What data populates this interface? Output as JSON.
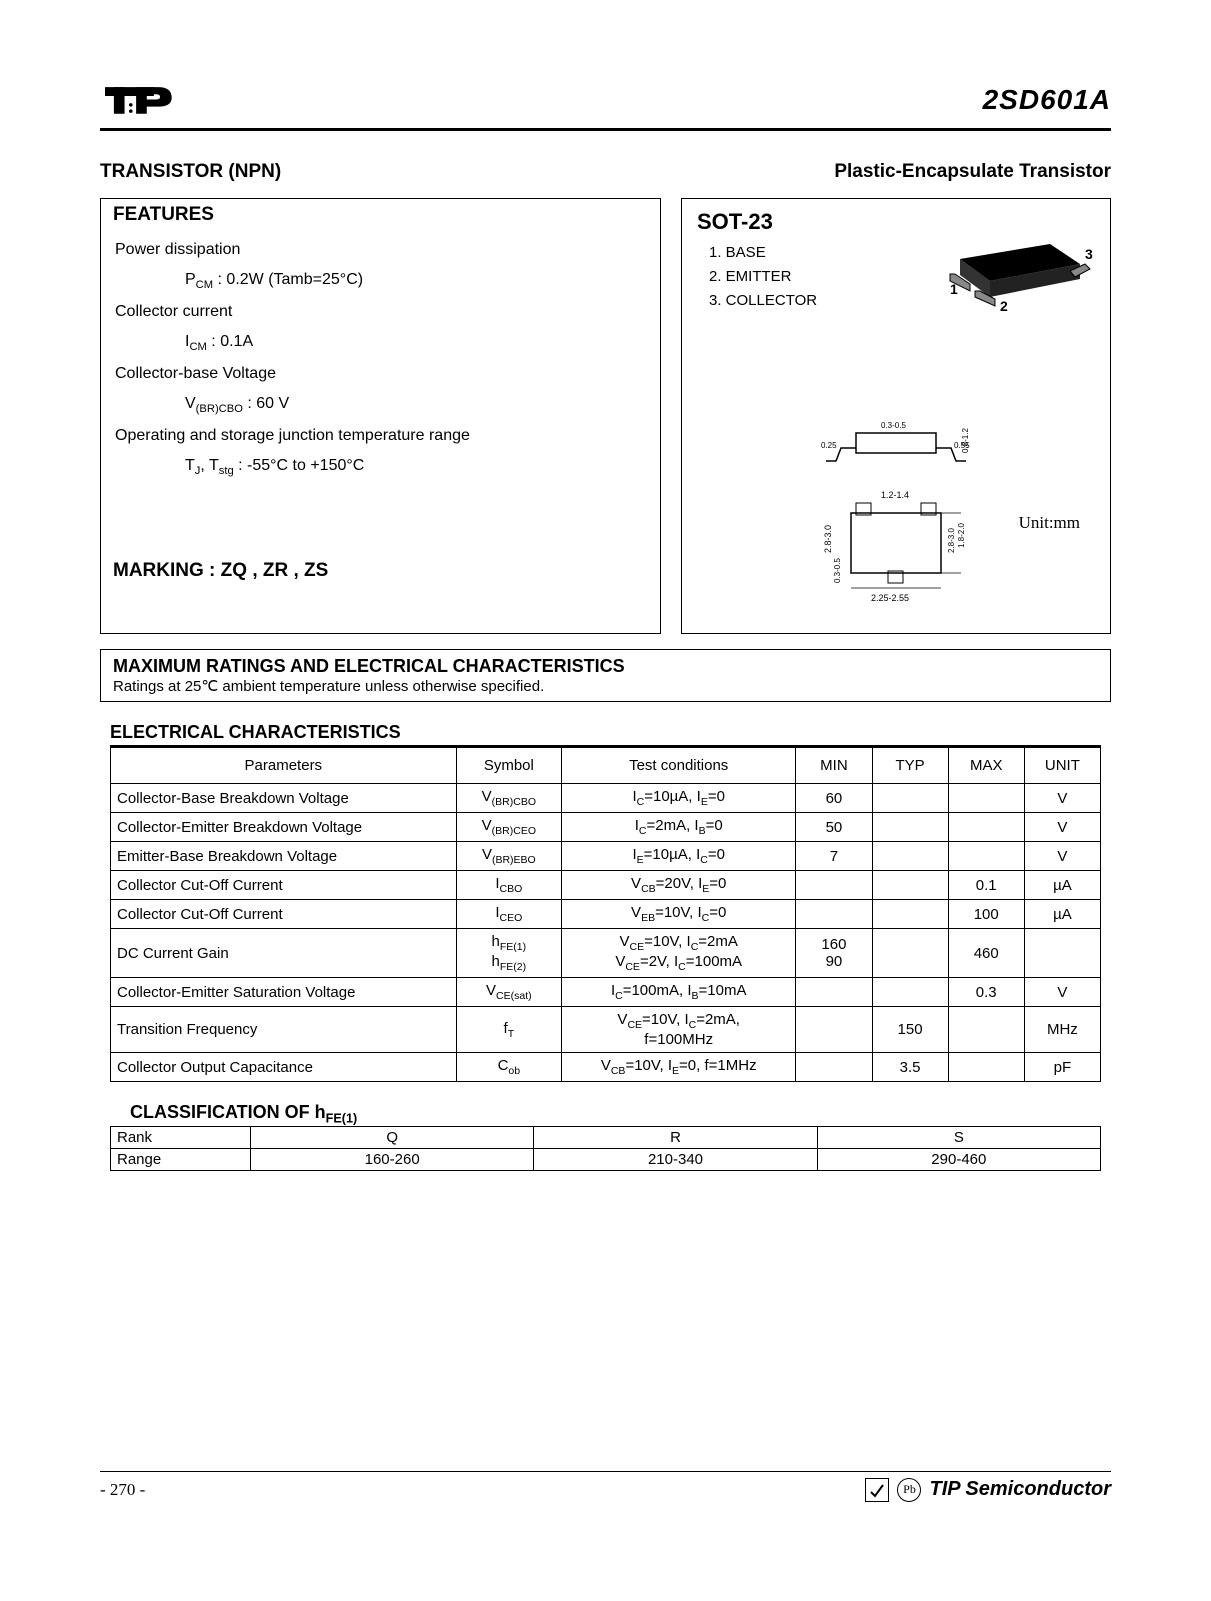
{
  "header": {
    "part_number": "2SD601A"
  },
  "subtitle": {
    "left": "TRANSISTOR (NPN)",
    "right": "Plastic-Encapsulate Transistor"
  },
  "features": {
    "title": "FEATURES",
    "items": [
      {
        "label": "Power dissipation",
        "value_html": "P<sub>CM</sub> : 0.2W (Tamb=25°C)"
      },
      {
        "label": "Collector current",
        "value_html": "I<sub>CM</sub> : 0.1A"
      },
      {
        "label": "Collector-base Voltage",
        "value_html": "V<sub>(BR)CBO</sub> : 60 V"
      },
      {
        "label": "Operating and storage junction temperature range",
        "value_html": "T<sub>J</sub>, T<sub>stg</sub> : -55°C to +150°C"
      }
    ],
    "marking": "MARKING : ZQ , ZR , ZS"
  },
  "package": {
    "title": "SOT-23",
    "pins": [
      "BASE",
      "EMITTER",
      "COLLECTOR"
    ],
    "unit": "Unit:mm",
    "dims": {
      "body_w": "2.8-3.0",
      "body_h": "1.2-1.4",
      "lead_pitch": "2.25-2.55",
      "lead_w": "0.3-0.5",
      "lead_h": "0.8-1.2",
      "height": "0.55",
      "stand": "0.25"
    }
  },
  "max_ratings": {
    "title": "MAXIMUM RATINGS AND ELECTRICAL CHARACTERISTICS",
    "subtitle": "Ratings at 25℃ ambient temperature unless otherwise specified."
  },
  "elec": {
    "title": "ELECTRICAL CHARACTERISTICS",
    "headers": [
      "Parameters",
      "Symbol",
      "Test conditions",
      "MIN",
      "TYP",
      "MAX",
      "UNIT"
    ],
    "rows": [
      {
        "param": "Collector-Base Breakdown Voltage",
        "sym": "V<sub>(BR)CBO</sub>",
        "test": "I<sub>C</sub>=10µA, I<sub>E</sub>=0",
        "min": "60",
        "typ": "",
        "max": "",
        "unit": "V"
      },
      {
        "param": "Collector-Emitter Breakdown Voltage",
        "sym": "V<sub>(BR)CEO</sub>",
        "test": "I<sub>C</sub>=2mA, I<sub>B</sub>=0",
        "min": "50",
        "typ": "",
        "max": "",
        "unit": "V"
      },
      {
        "param": "Emitter-Base Breakdown Voltage",
        "sym": "V<sub>(BR)EBO</sub>",
        "test": "I<sub>E</sub>=10µA, I<sub>C</sub>=0",
        "min": "7",
        "typ": "",
        "max": "",
        "unit": "V"
      },
      {
        "param": "Collector Cut-Off Current",
        "sym": "I<sub>CBO</sub>",
        "test": "V<sub>CB</sub>=20V, I<sub>E</sub>=0",
        "min": "",
        "typ": "",
        "max": "0.1",
        "unit": "µA"
      },
      {
        "param": "Collector Cut-Off Current",
        "sym": "I<sub>CEO</sub>",
        "test": "V<sub>EB</sub>=10V, I<sub>C</sub>=0",
        "min": "",
        "typ": "",
        "max": "100",
        "unit": "µA"
      },
      {
        "param": "DC Current Gain",
        "sym": "h<sub>FE(1)</sub><br>h<sub>FE(2)</sub>",
        "test": "V<sub>CE</sub>=10V, I<sub>C</sub>=2mA<br>V<sub>CE</sub>=2V, I<sub>C</sub>=100mA",
        "min": "160<br>90",
        "typ": "",
        "max": "460",
        "unit": ""
      },
      {
        "param": "Collector-Emitter Saturation Voltage",
        "sym": "V<sub>CE(sat)</sub>",
        "test": "I<sub>C</sub>=100mA, I<sub>B</sub>=10mA",
        "min": "",
        "typ": "",
        "max": "0.3",
        "unit": "V"
      },
      {
        "param": "Transition Frequency",
        "sym": "f<sub>T</sub>",
        "test": "V<sub>CE</sub>=10V, I<sub>C</sub>=2mA,<br>f=100MHz",
        "min": "",
        "typ": "150",
        "max": "",
        "unit": "MHz"
      },
      {
        "param": "Collector Output Capacitance",
        "sym": "C<sub>ob</sub>",
        "test": "V<sub>CB</sub>=10V, I<sub>E</sub>=0, f=1MHz",
        "min": "",
        "typ": "3.5",
        "max": "",
        "unit": "pF"
      }
    ]
  },
  "classification": {
    "title_html": "CLASSIFICATION OF h<sub>FE(1)</sub>",
    "rows": [
      [
        "Rank",
        "Q",
        "R",
        "S"
      ],
      [
        "Range",
        "160-260",
        "210-340",
        "290-460"
      ]
    ]
  },
  "footer": {
    "page": "- 270 -",
    "brand": "TIP Semiconductor",
    "rohs": "RoHS",
    "pb": "Pb"
  },
  "style": {
    "border_color": "#000000",
    "text_color": "#000000",
    "bg_color": "#ffffff"
  }
}
